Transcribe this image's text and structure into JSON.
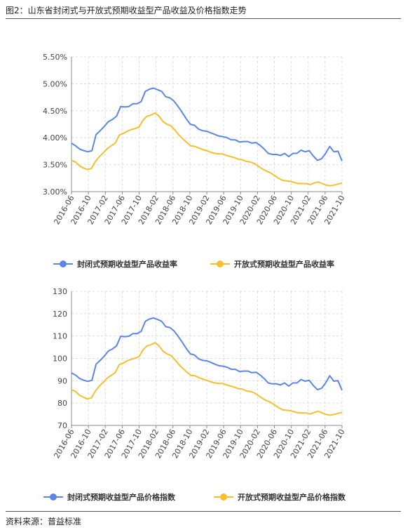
{
  "figure_title": "图2：山东省封闭式与开放式预期收益型产品收益及价格指数走势",
  "source": "资料来源：普益标准",
  "colors": {
    "closed": "#5b86e5",
    "open": "#f6bf2e",
    "grid": "#dcdcdc",
    "axis": "#888888"
  },
  "chart_data": [
    {
      "type": "line",
      "title": "",
      "xlabel": "",
      "ylabel": "",
      "ylim": [
        3.0,
        5.5
      ],
      "yticks": [
        "3.00%",
        "3.50%",
        "4.00%",
        "4.50%",
        "5.00%",
        "5.50%"
      ],
      "x_tick_labels": [
        "2016-06",
        "2016-10",
        "2017-02",
        "2017-06",
        "2017-10",
        "2018-02",
        "2018-06",
        "2018-10",
        "2019-02",
        "2019-06",
        "2019-10",
        "2020-02",
        "2020-06",
        "2020-10",
        "2021-02",
        "2021-06",
        "2021-10"
      ],
      "grid": true,
      "legend_position": "bottom",
      "series": [
        {
          "name": "封闭式预期收益型产品收益率",
          "values": [
            3.9,
            3.85,
            3.79,
            3.76,
            3.74,
            3.76,
            4.06,
            4.13,
            4.21,
            4.3,
            4.34,
            4.4,
            4.58,
            4.57,
            4.58,
            4.63,
            4.63,
            4.67,
            4.86,
            4.9,
            4.92,
            4.89,
            4.86,
            4.76,
            4.74,
            4.68,
            4.58,
            4.47,
            4.35,
            4.25,
            4.23,
            4.16,
            4.13,
            4.12,
            4.09,
            4.06,
            4.03,
            4.02,
            4.0,
            3.96,
            3.96,
            3.92,
            3.93,
            3.93,
            3.9,
            3.91,
            3.86,
            3.79,
            3.71,
            3.69,
            3.69,
            3.67,
            3.71,
            3.65,
            3.71,
            3.71,
            3.77,
            3.74,
            3.76,
            3.66,
            3.58,
            3.61,
            3.71,
            3.84,
            3.74,
            3.75,
            3.57
          ]
        },
        {
          "name": "开放式预期收益型产品收益率",
          "values": [
            3.58,
            3.55,
            3.48,
            3.44,
            3.41,
            3.43,
            3.56,
            3.65,
            3.72,
            3.8,
            3.85,
            3.9,
            4.05,
            4.08,
            4.12,
            4.15,
            4.17,
            4.2,
            4.33,
            4.4,
            4.42,
            4.46,
            4.4,
            4.3,
            4.25,
            4.22,
            4.14,
            4.05,
            3.98,
            3.91,
            3.85,
            3.84,
            3.81,
            3.78,
            3.76,
            3.73,
            3.71,
            3.7,
            3.7,
            3.67,
            3.65,
            3.63,
            3.6,
            3.59,
            3.56,
            3.55,
            3.52,
            3.47,
            3.42,
            3.38,
            3.35,
            3.3,
            3.25,
            3.21,
            3.2,
            3.19,
            3.17,
            3.15,
            3.15,
            3.15,
            3.13,
            3.16,
            3.18,
            3.15,
            3.12,
            3.11,
            3.12,
            3.14,
            3.16
          ]
        }
      ]
    },
    {
      "type": "line",
      "title": "",
      "xlabel": "",
      "ylabel": "",
      "ylim": [
        70,
        130
      ],
      "yticks": [
        "70",
        "80",
        "90",
        "100",
        "110",
        "120",
        "130"
      ],
      "x_tick_labels": [
        "2016-06",
        "2016-10",
        "2017-02",
        "2017-06",
        "2017-10",
        "2018-02",
        "2018-06",
        "2018-10",
        "2019-02",
        "2019-06",
        "2019-10",
        "2020-02",
        "2020-06",
        "2020-10",
        "2021-02",
        "2021-06",
        "2021-10"
      ],
      "grid": true,
      "legend_position": "bottom",
      "series": [
        {
          "name": "封闭式预期收益型产品价格指数",
          "values": [
            93.5,
            92.5,
            91.0,
            90.2,
            89.7,
            90.2,
            97.4,
            99.1,
            101.0,
            103.3,
            104.2,
            105.6,
            109.9,
            109.7,
            109.9,
            111.1,
            111.1,
            112.1,
            116.6,
            117.6,
            118.1,
            117.4,
            116.6,
            114.2,
            113.8,
            112.3,
            109.9,
            107.3,
            104.4,
            102.0,
            101.5,
            99.8,
            99.1,
            98.9,
            98.2,
            97.4,
            96.7,
            96.5,
            96.0,
            95.1,
            95.1,
            94.1,
            94.3,
            94.3,
            93.6,
            93.8,
            92.6,
            91.0,
            89.0,
            88.6,
            88.6,
            88.1,
            89.0,
            87.6,
            89.0,
            89.0,
            90.5,
            89.8,
            90.2,
            87.8,
            86.0,
            86.6,
            89.0,
            92.2,
            89.8,
            90.0,
            85.7
          ]
        },
        {
          "name": "开放式预期收益型产品价格指数",
          "values": [
            86.0,
            85.2,
            83.5,
            82.6,
            81.8,
            82.3,
            85.4,
            87.6,
            89.3,
            91.2,
            92.4,
            93.6,
            97.2,
            97.9,
            98.9,
            99.6,
            100.1,
            100.8,
            103.9,
            105.6,
            106.1,
            107.0,
            105.6,
            103.2,
            102.0,
            101.3,
            99.4,
            97.2,
            95.5,
            93.8,
            92.4,
            92.2,
            91.4,
            90.7,
            90.2,
            89.5,
            89.0,
            88.8,
            88.8,
            88.1,
            87.6,
            87.1,
            86.4,
            86.2,
            85.4,
            85.2,
            84.5,
            83.3,
            82.1,
            81.1,
            80.4,
            79.2,
            78.0,
            77.0,
            76.8,
            76.6,
            76.1,
            75.6,
            75.6,
            75.6,
            75.1,
            75.8,
            76.3,
            75.6,
            74.9,
            74.6,
            74.9,
            75.4,
            75.8
          ]
        }
      ]
    }
  ]
}
